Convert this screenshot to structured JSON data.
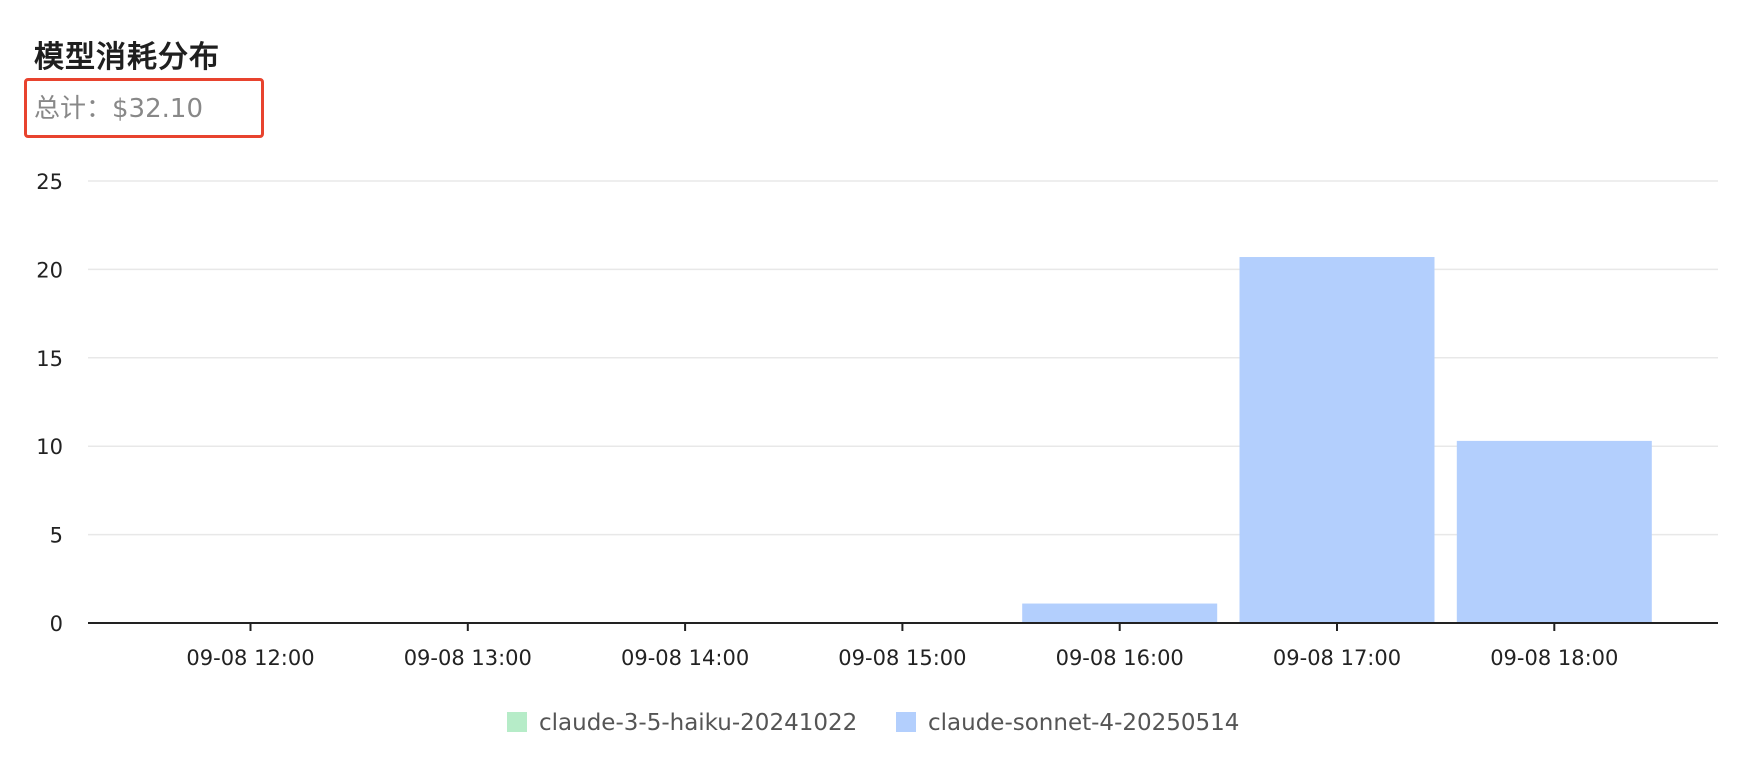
{
  "header": {
    "title": "模型消耗分布",
    "total_label": "总计：",
    "total_value": "$32.10"
  },
  "colors": {
    "highlight_border": "#e8432e",
    "grid": "#e8e8e8",
    "axis": "#222222"
  },
  "chart_data": {
    "type": "bar",
    "title": "模型消耗分布",
    "xlabel": "",
    "ylabel": "",
    "ylim": [
      0,
      25
    ],
    "yticks": [
      0,
      5,
      10,
      15,
      20,
      25
    ],
    "grid": true,
    "legend_position": "bottom-center",
    "categories": [
      "09-08 12:00",
      "09-08 13:00",
      "09-08 14:00",
      "09-08 15:00",
      "09-08 16:00",
      "09-08 17:00",
      "09-08 18:00"
    ],
    "series": [
      {
        "name": "claude-3-5-haiku-20241022",
        "color": "#b6ecc8",
        "values": [
          0,
          0,
          0,
          0,
          0,
          0,
          0
        ]
      },
      {
        "name": "claude-sonnet-4-20250514",
        "color": "#b3cffd",
        "values": [
          0,
          0,
          0,
          0,
          1.1,
          20.7,
          10.3
        ]
      }
    ]
  }
}
